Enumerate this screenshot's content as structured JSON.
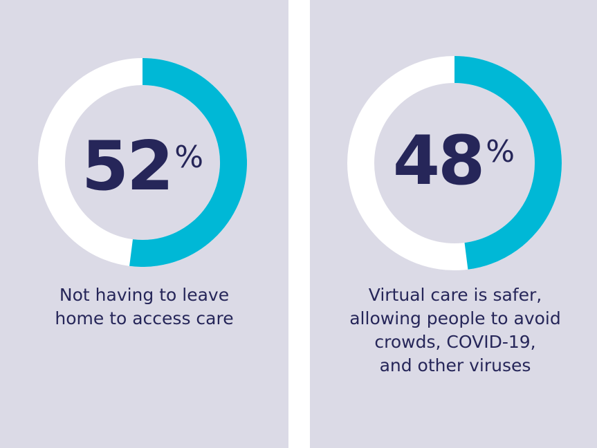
{
  "chart_data": [
    {
      "type": "pie",
      "variant": "donut",
      "value": 52,
      "value_display": "52",
      "unit": "%",
      "caption": "Not having to leave home to access care",
      "caption_lines": [
        "Not having to leave",
        "home to access care"
      ]
    },
    {
      "type": "pie",
      "variant": "donut",
      "value": 48,
      "value_display": "48",
      "unit": "%",
      "caption": "Virtual care is safer, allowing people to avoid crowds, COVID-19, and other viruses",
      "caption_lines": [
        "Virtual care is safer,",
        "allowing people to avoid",
        "crowds, COVID-19,",
        "and other viruses"
      ]
    }
  ],
  "colors": {
    "panel_background": "#dbdae6",
    "ring_filled": "#00b8d6",
    "ring_remainder": "#ffffff",
    "text": "#262659",
    "divider": "#ffffff"
  }
}
